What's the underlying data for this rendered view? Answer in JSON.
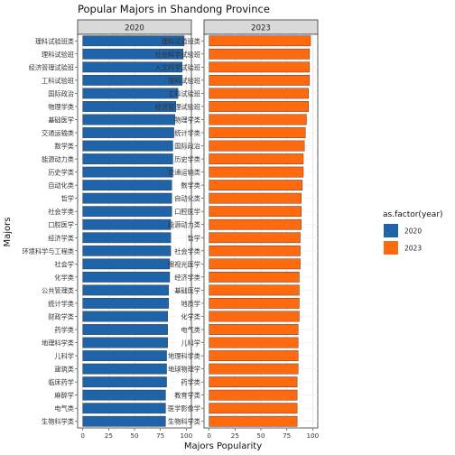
{
  "chart_data": {
    "type": "bar",
    "orientation": "horizontal",
    "title": "Popular Majors in Shandong Province",
    "xlabel": "Majors Popularity",
    "ylabel": "Majors",
    "xlim": [
      0,
      100
    ],
    "x_ticks": [
      "0",
      "25",
      "50",
      "75",
      "100"
    ],
    "grid": true,
    "legend": {
      "title": "as.factor(year)",
      "placement": "right",
      "entries": [
        {
          "label": "2020",
          "color": "#1F63A8"
        },
        {
          "label": "2023",
          "color": "#FF6A0E"
        }
      ]
    },
    "panels": [
      {
        "strip": "2020",
        "color": "#1F63A8",
        "categories": [
          "理科试验班类",
          "理科试验班",
          "经济管理试验班",
          "工科试验班",
          "国际政治",
          "物理学类",
          "基础医学",
          "交通运输类",
          "数学类",
          "能源动力类",
          "历史学类",
          "自动化类",
          "哲学",
          "社会学类",
          "口腔医学",
          "经济学类",
          "环境科学与工程类",
          "社会学",
          "化学类",
          "公共管理类",
          "统计学类",
          "财政学类",
          "药学类",
          "地理科学类",
          "儿科学",
          "建筑类",
          "临床药学",
          "麻醉学",
          "电气类",
          "生物科学类"
        ],
        "values": [
          98,
          97,
          96,
          96,
          92,
          90,
          89,
          88,
          87,
          87,
          87,
          86,
          86,
          86,
          85,
          85,
          85,
          84,
          84,
          83,
          83,
          82,
          82,
          82,
          81,
          81,
          81,
          80,
          80,
          80
        ]
      },
      {
        "strip": "2023",
        "color": "#FF6A0E",
        "categories": [
          "理科试验班类",
          "社会科学试验班",
          "人文科学试验班",
          "理科试验班",
          "工科试验班",
          "经济管理试验班",
          "物理学类",
          "统计学类",
          "国际政治",
          "历史学类",
          "交通运输类",
          "数学类",
          "自动化类",
          "口腔医学",
          "能源动力类",
          "哲学",
          "社会学类",
          "眼视光医学",
          "经济学类",
          "基础医学",
          "地质学",
          "化学类",
          "电气类",
          "儿科学",
          "地理科学类",
          "地球物理学",
          "药学类",
          "教育学类",
          "医学影像学",
          "生物科学类"
        ],
        "values": [
          98,
          97,
          97,
          97,
          96,
          96,
          94,
          93,
          92,
          91,
          91,
          90,
          89,
          89,
          89,
          88,
          88,
          88,
          87,
          87,
          87,
          87,
          86,
          86,
          86,
          86,
          85,
          85,
          85,
          85
        ]
      }
    ]
  }
}
